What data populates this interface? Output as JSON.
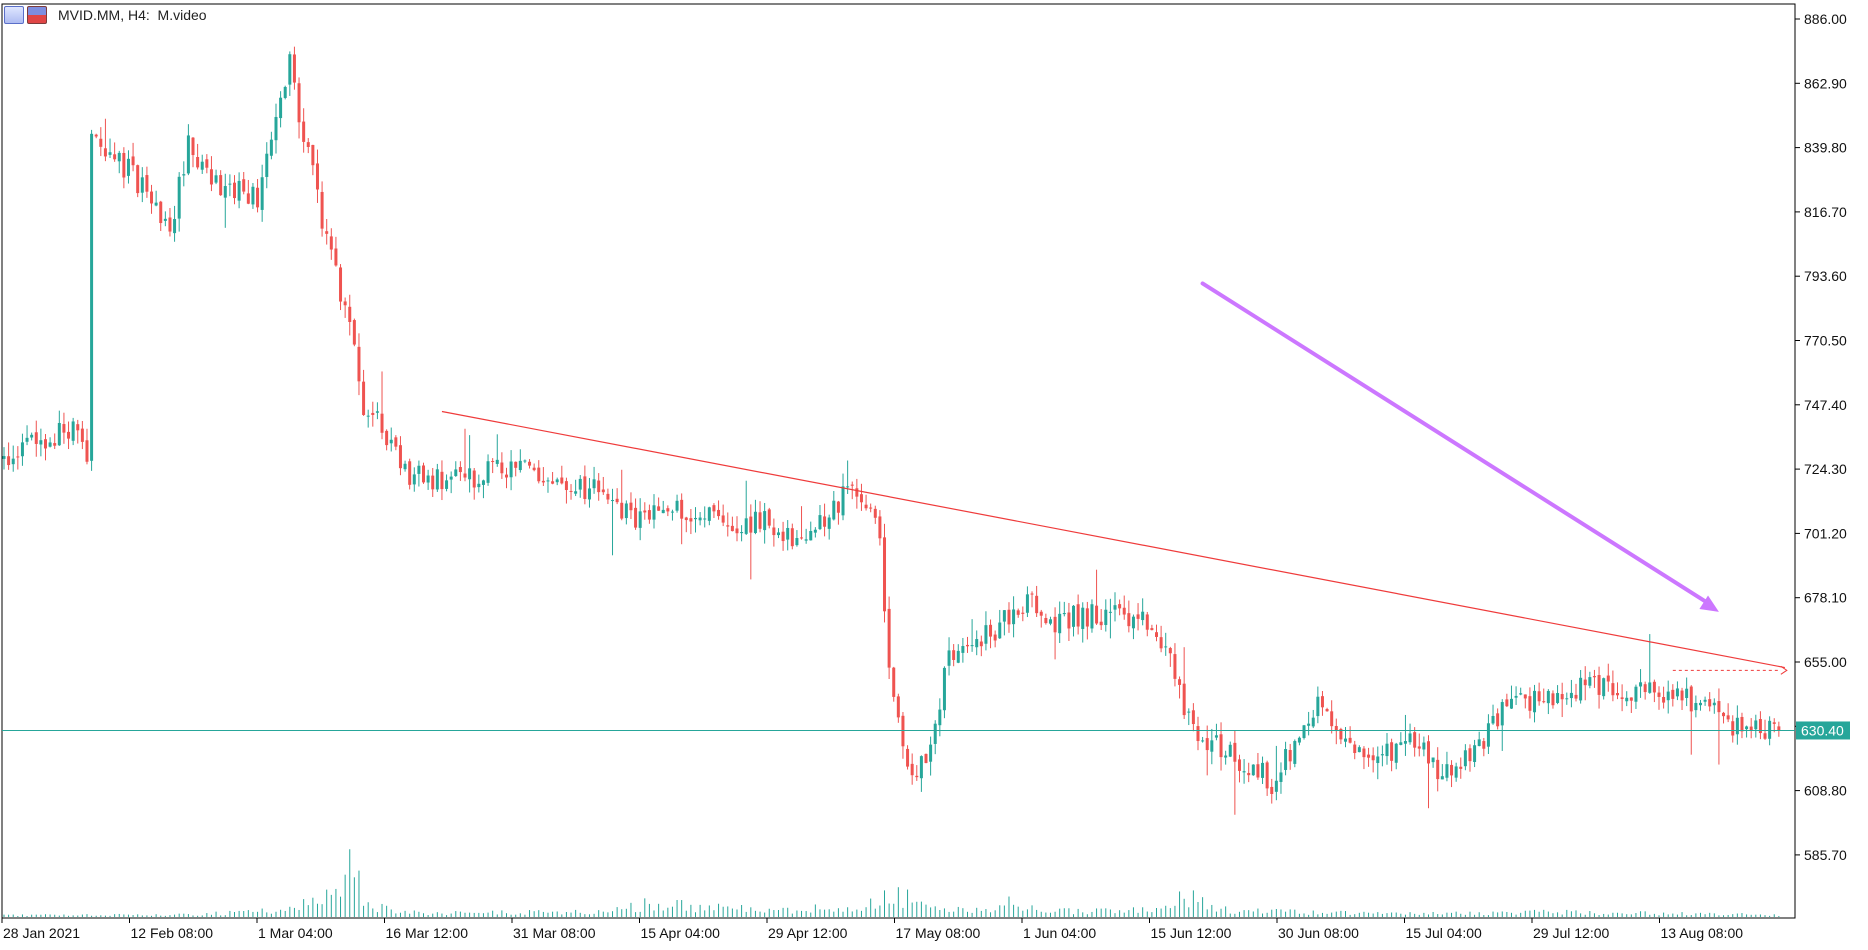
{
  "header": {
    "title": "MVID.MM, H4:  M.video"
  },
  "colors": {
    "bull": "#26a69a",
    "bear": "#ef5350",
    "price_line": "#26a69a",
    "trendline": "#ef3b3b",
    "arrow": "#cc77ff",
    "axis": "#000000"
  },
  "chart_data": {
    "type": "candlestick",
    "symbol": "MVID.MM",
    "timeframe": "H4",
    "instrument": "M.video",
    "ylim": [
      563,
      888
    ],
    "y_ticks": [
      "886.00",
      "862.90",
      "839.80",
      "816.70",
      "793.60",
      "770.50",
      "747.40",
      "724.30",
      "701.20",
      "678.10",
      "655.00",
      "631.90",
      "608.80",
      "585.70"
    ],
    "x_ticks": [
      "28 Jan 2021",
      "12 Feb 08:00",
      "1 Mar 04:00",
      "16 Mar 12:00",
      "31 Mar 08:00",
      "15 Apr 04:00",
      "29 Apr 12:00",
      "17 May 08:00",
      "1 Jun 04:00",
      "15 Jun 12:00",
      "30 Jun 08:00",
      "15 Jul 04:00",
      "29 Jul 12:00",
      "13 Aug 08:00"
    ],
    "last_price": "630.40",
    "trendline": [
      {
        "bar": 95,
        "price": 745
      },
      {
        "bar": 385,
        "price": 653
      }
    ],
    "arrow": [
      {
        "bar": 260,
        "price": 791
      },
      {
        "bar": 372,
        "price": 673
      }
    ],
    "price_path": [
      [
        0,
        727
      ],
      [
        15,
        740
      ],
      [
        18,
        730
      ],
      [
        19,
        845
      ],
      [
        28,
        830
      ],
      [
        36,
        810
      ],
      [
        40,
        840
      ],
      [
        48,
        825
      ],
      [
        55,
        822
      ],
      [
        60,
        855
      ],
      [
        62,
        870
      ],
      [
        65,
        845
      ],
      [
        70,
        805
      ],
      [
        75,
        775
      ],
      [
        78,
        745
      ],
      [
        82,
        740
      ],
      [
        88,
        722
      ],
      [
        100,
        720
      ],
      [
        110,
        726
      ],
      [
        120,
        719
      ],
      [
        130,
        716
      ],
      [
        138,
        705
      ],
      [
        145,
        712
      ],
      [
        155,
        705
      ],
      [
        165,
        706
      ],
      [
        172,
        697
      ],
      [
        178,
        706
      ],
      [
        183,
        716
      ],
      [
        190,
        703
      ],
      [
        192,
        651
      ],
      [
        196,
        613
      ],
      [
        200,
        623
      ],
      [
        205,
        655
      ],
      [
        215,
        667
      ],
      [
        222,
        677
      ],
      [
        228,
        670
      ],
      [
        240,
        673
      ],
      [
        248,
        668
      ],
      [
        252,
        660
      ],
      [
        258,
        630
      ],
      [
        268,
        620
      ],
      [
        275,
        612
      ],
      [
        285,
        640
      ],
      [
        292,
        625
      ],
      [
        298,
        618
      ],
      [
        305,
        631
      ],
      [
        312,
        613
      ],
      [
        318,
        620
      ],
      [
        325,
        638
      ],
      [
        333,
        642
      ],
      [
        345,
        648
      ],
      [
        355,
        644
      ],
      [
        364,
        645
      ],
      [
        366,
        641
      ],
      [
        370,
        637
      ],
      [
        375,
        633
      ],
      [
        385,
        630
      ]
    ],
    "volume_profile": [
      [
        0,
        2
      ],
      [
        40,
        3
      ],
      [
        54,
        6
      ],
      [
        64,
        11
      ],
      [
        70,
        32
      ],
      [
        75,
        55
      ],
      [
        80,
        12
      ],
      [
        90,
        5
      ],
      [
        130,
        6
      ],
      [
        140,
        16
      ],
      [
        160,
        10
      ],
      [
        170,
        8
      ],
      [
        188,
        18
      ],
      [
        195,
        26
      ],
      [
        200,
        10
      ],
      [
        215,
        12
      ],
      [
        218,
        18
      ],
      [
        225,
        7
      ],
      [
        250,
        8
      ],
      [
        256,
        28
      ],
      [
        262,
        10
      ],
      [
        280,
        6
      ],
      [
        300,
        4
      ],
      [
        335,
        6
      ],
      [
        350,
        5
      ],
      [
        364,
        4
      ],
      [
        380,
        3
      ],
      [
        385,
        2
      ]
    ]
  }
}
